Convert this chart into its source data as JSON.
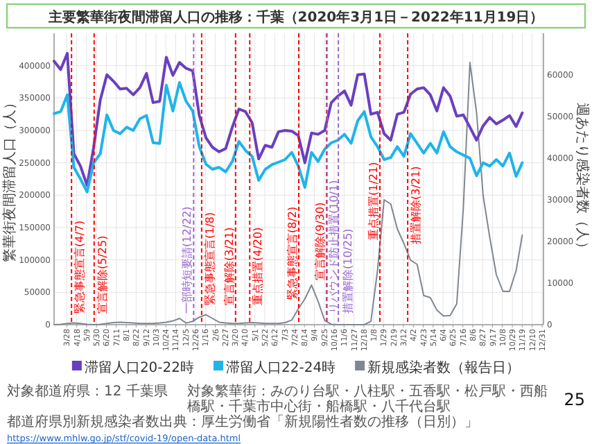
{
  "chart_data": {
    "type": "line",
    "title": "主要繁華街夜間滞留人口の推移：千葉（2020年3月1日－2022年11月19日）",
    "ylabel": "繁華街夜間滞留人口（人）",
    "y2label": "週あたり感染者数（人）",
    "x": [
      "2020-03-01",
      "2020-03-15",
      "2020-03-29",
      "2020-04-12",
      "2020-04-26",
      "2020-05-10",
      "2020-05-24",
      "2020-06-07",
      "2020-06-21",
      "2020-07-05",
      "2020-07-19",
      "2020-08-02",
      "2020-08-16",
      "2020-08-30",
      "2020-09-13",
      "2020-09-27",
      "2020-10-11",
      "2020-10-25",
      "2020-11-08",
      "2020-11-22",
      "2020-12-06",
      "2020-12-20",
      "2021-01-03",
      "2021-01-17",
      "2021-01-31",
      "2021-02-14",
      "2021-02-28",
      "2021-03-14",
      "2021-03-28",
      "2021-04-11",
      "2021-04-25",
      "2021-05-09",
      "2021-05-23",
      "2021-06-06",
      "2021-06-20",
      "2021-07-04",
      "2021-07-18",
      "2021-08-01",
      "2021-08-15",
      "2021-08-29",
      "2021-09-12",
      "2021-09-26",
      "2021-10-10",
      "2021-10-24",
      "2021-11-07",
      "2021-11-21",
      "2021-12-05",
      "2021-12-19",
      "2022-01-02",
      "2022-01-16",
      "2022-01-30",
      "2022-02-13",
      "2022-02-27",
      "2022-03-13",
      "2022-03-27",
      "2022-04-10",
      "2022-04-24",
      "2022-05-08",
      "2022-05-22",
      "2022-06-05",
      "2022-06-19",
      "2022-07-03",
      "2022-07-17",
      "2022-07-31",
      "2022-08-14",
      "2022-08-28",
      "2022-09-11",
      "2022-09-25",
      "2022-10-09",
      "2022-10-23",
      "2022-11-06",
      "2022-11-19"
    ],
    "series": [
      {
        "name": "滞留人口20-22時",
        "color": "#6a3fbf",
        "axis": "y",
        "values": [
          407000,
          394000,
          419000,
          264000,
          245000,
          215000,
          274000,
          347000,
          386000,
          376000,
          364000,
          365000,
          355000,
          366000,
          388000,
          343000,
          345000,
          413000,
          385000,
          405000,
          396000,
          392000,
          323000,
          289000,
          274000,
          267000,
          272000,
          305000,
          333000,
          329000,
          312000,
          256000,
          277000,
          274000,
          298000,
          300000,
          299000,
          292000,
          250000,
          296000,
          294000,
          300000,
          343000,
          353000,
          361000,
          339000,
          386000,
          387000,
          325000,
          328000,
          295000,
          285000,
          325000,
          328000,
          356000,
          364000,
          366000,
          355000,
          330000,
          366000,
          353000,
          322000,
          324000,
          305000,
          285000,
          307000,
          320000,
          310000,
          316000,
          323000,
          306000,
          327000
        ]
      },
      {
        "name": "滞留人口22-24時",
        "color": "#1fb4ea",
        "axis": "y",
        "values": [
          326000,
          329000,
          355000,
          243000,
          225000,
          205000,
          250000,
          264000,
          324000,
          300000,
          295000,
          305000,
          300000,
          318000,
          323000,
          281000,
          280000,
          370000,
          330000,
          374000,
          345000,
          330000,
          275000,
          248000,
          240000,
          243000,
          236000,
          252000,
          283000,
          269000,
          260000,
          223000,
          240000,
          247000,
          251000,
          255000,
          266000,
          245000,
          212000,
          266000,
          252000,
          271000,
          281000,
          285000,
          294000,
          280000,
          315000,
          329000,
          290000,
          275000,
          255000,
          258000,
          275000,
          260000,
          295000,
          280000,
          265000,
          280000,
          265000,
          298000,
          275000,
          267000,
          262000,
          257000,
          230000,
          250000,
          245000,
          255000,
          245000,
          265000,
          229000,
          250000
        ]
      },
      {
        "name": "新規感染者数（報告日）",
        "color": "#7f8790",
        "axis": "y2",
        "values": [
          0,
          100,
          300,
          400,
          300,
          100,
          0,
          100,
          300,
          500,
          600,
          500,
          400,
          300,
          300,
          300,
          400,
          600,
          900,
          1500,
          400,
          800,
          1800,
          2400,
          1500,
          600,
          400,
          300,
          300,
          400,
          500,
          400,
          300,
          300,
          300,
          500,
          1100,
          3800,
          6200,
          9500,
          5600,
          1000,
          100,
          0,
          0,
          0,
          0,
          0,
          800,
          13000,
          30000,
          29000,
          23000,
          19500,
          15500,
          14500,
          7000,
          6500,
          3500,
          2100,
          2200,
          5000,
          28000,
          63000,
          51000,
          31000,
          21000,
          12000,
          8000,
          8000,
          13000,
          21500
        ]
      }
    ],
    "xlim": [
      "2020-03-01",
      "2023-01-03"
    ],
    "xticks": [
      {
        "value": "2020-03-28",
        "label": "3/28"
      },
      {
        "value": "2020-04-18",
        "label": "4/18"
      },
      {
        "value": "2020-05-09",
        "label": "5/9"
      },
      {
        "value": "2020-05-30",
        "label": "5/30"
      },
      {
        "value": "2020-06-20",
        "label": "6/20"
      },
      {
        "value": "2020-07-11",
        "label": "7/11"
      },
      {
        "value": "2020-08-01",
        "label": "8/1"
      },
      {
        "value": "2020-08-22",
        "label": "8/22"
      },
      {
        "value": "2020-09-12",
        "label": "9/12"
      },
      {
        "value": "2020-10-03",
        "label": "10/3"
      },
      {
        "value": "2020-10-24",
        "label": "10/24"
      },
      {
        "value": "2020-11-14",
        "label": "11/14"
      },
      {
        "value": "2020-12-05",
        "label": "12/5"
      },
      {
        "value": "2020-12-26",
        "label": "12/26"
      },
      {
        "value": "2021-01-16",
        "label": "1/16"
      },
      {
        "value": "2021-02-06",
        "label": "2/6"
      },
      {
        "value": "2021-02-27",
        "label": "2/27"
      },
      {
        "value": "2021-03-20",
        "label": "3/20"
      },
      {
        "value": "2021-04-10",
        "label": "4/10"
      },
      {
        "value": "2021-05-01",
        "label": "5/1"
      },
      {
        "value": "2021-05-22",
        "label": "5/22"
      },
      {
        "value": "2021-06-12",
        "label": "6/12"
      },
      {
        "value": "2021-07-03",
        "label": "7/3"
      },
      {
        "value": "2021-07-24",
        "label": "7/24"
      },
      {
        "value": "2021-08-14",
        "label": "8/14"
      },
      {
        "value": "2021-09-04",
        "label": "9/4"
      },
      {
        "value": "2021-09-25",
        "label": "9/25"
      },
      {
        "value": "2021-10-16",
        "label": "10/16"
      },
      {
        "value": "2021-11-06",
        "label": "11/6"
      },
      {
        "value": "2021-11-27",
        "label": "11/27"
      },
      {
        "value": "2021-12-18",
        "label": "12/18"
      },
      {
        "value": "2022-01-08",
        "label": "1/8"
      },
      {
        "value": "2022-01-29",
        "label": "1/29"
      },
      {
        "value": "2022-02-19",
        "label": "2/19"
      },
      {
        "value": "2022-03-12",
        "label": "3/12"
      },
      {
        "value": "2022-04-02",
        "label": "4/2"
      },
      {
        "value": "2022-04-23",
        "label": "4/23"
      },
      {
        "value": "2022-05-14",
        "label": "5/14"
      },
      {
        "value": "2022-06-04",
        "label": "6/4"
      },
      {
        "value": "2022-06-25",
        "label": "6/25"
      },
      {
        "value": "2022-07-16",
        "label": "7/16"
      },
      {
        "value": "2022-08-06",
        "label": "8/6"
      },
      {
        "value": "2022-08-27",
        "label": "8/27"
      },
      {
        "value": "2022-09-17",
        "label": "9/17"
      },
      {
        "value": "2022-10-08",
        "label": "10/8"
      },
      {
        "value": "2022-10-29",
        "label": "10/29"
      },
      {
        "value": "2022-11-19",
        "label": "11/19"
      },
      {
        "value": "2022-12-10",
        "label": "12/10"
      },
      {
        "value": "2022-12-31",
        "label": "12/31"
      }
    ],
    "ylim": [
      0,
      450000
    ],
    "yticks": [
      0,
      50000,
      100000,
      150000,
      200000,
      250000,
      300000,
      350000,
      400000
    ],
    "y2lim": [
      0,
      70000
    ],
    "y2ticks": [
      0,
      10000,
      20000,
      30000,
      40000,
      50000,
      60000
    ],
    "ref_lines": [
      {
        "axis": "x",
        "value": "2020-04-07",
        "label": "緊急事態宣言(4/7)",
        "color": "#ff0000",
        "line_style": "dashed"
      },
      {
        "axis": "x",
        "value": "2020-05-25",
        "label": "宣言解除(5/25)",
        "color": "#ff0000",
        "line_style": "dashed"
      },
      {
        "axis": "x",
        "value": "2020-12-22",
        "label": "一部時短要請(12/22)",
        "color": "#9966cc",
        "line_style": "dashed"
      },
      {
        "axis": "x",
        "value": "2021-01-08",
        "label": "緊急事態宣言(1/8)",
        "color": "#ff0000",
        "line_style": "dashed"
      },
      {
        "axis": "x",
        "value": "2021-03-21",
        "label": "宣言解除(3/21)",
        "color": "#ff0000",
        "line_style": "dashed"
      },
      {
        "axis": "x",
        "value": "2021-04-20",
        "label": "重点措置(4/20)",
        "color": "#ff0000",
        "line_style": "dashed"
      },
      {
        "axis": "x",
        "value": "2021-08-02",
        "label": "緊急事態宣言(8/2)",
        "color": "#ff0000",
        "line_style": "dashed"
      },
      {
        "axis": "x",
        "value": "2021-09-30",
        "label": "宣言解除(9/30)",
        "color": "#ff0000",
        "line_style": "dashed"
      },
      {
        "axis": "x",
        "value": "2021-10-01",
        "label": "リバウンド防止措置(10/1)",
        "color": "#9966cc",
        "line_style": "dashed"
      },
      {
        "axis": "x",
        "value": "2021-10-25",
        "label": "措置解除(10/25)",
        "color": "#9966cc",
        "line_style": "dashed"
      },
      {
        "axis": "x",
        "value": "2022-01-21",
        "label": "重点措置(1/21)",
        "color": "#ff0000",
        "line_style": "dashed"
      },
      {
        "axis": "x",
        "value": "2022-03-21",
        "label": "措置解除(3/21)",
        "color": "#ff0000",
        "line_style": "dashed"
      }
    ],
    "grid": true,
    "legend": "bottom",
    "annotations": [
      "対象都道府県：12 千葉県",
      "対象繁華街：みのり台駅・八柱駅・五香駅・松戸駅・西船橋駅・千葉市中心街・船橋駅・八千代台駅",
      "都道府県別新規感染者数出典：厚生労働省「新規陽性者数の推移（日別）」",
      "https://www.mhlw.go.jp/stf/covid-19/open-data.html",
      "25"
    ]
  }
}
